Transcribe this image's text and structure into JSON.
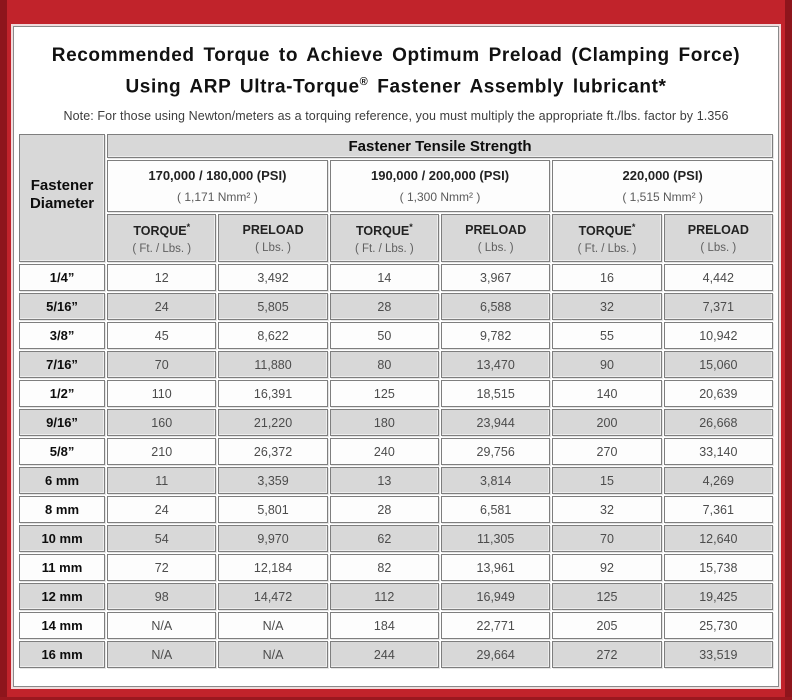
{
  "frame": {
    "red": "#c1232b",
    "maroon": "#8e151c"
  },
  "header": {
    "title_line1": "Recommended Torque to Achieve Optimum Preload (Clamping Force)",
    "title_line2_pre": "Using ARP Ultra-Torque",
    "title_line2_sup": "®",
    "title_line2_post": " Fastener Assembly lubricant*",
    "note": "Note: For those using Newton/meters as a torquing reference, you must multiply the appropriate ft./lbs. factor by 1.356"
  },
  "table": {
    "corner_line1": "Fastener",
    "corner_line2": "Diameter",
    "tensile_header": "Fastener Tensile Strength",
    "groups": [
      {
        "psi": "170,000 / 180,000 (PSI)",
        "nmm": "( 1,171 Nmm² )"
      },
      {
        "psi": "190,000 / 200,000 (PSI)",
        "nmm": "( 1,300 Nmm² )"
      },
      {
        "psi": "220,000 (PSI)",
        "nmm": "( 1,515 Nmm² )"
      }
    ],
    "col_headers": {
      "torque_label": "TORQUE",
      "torque_sup": "*",
      "torque_unit": "( Ft. / Lbs. )",
      "preload_label": "PRELOAD",
      "preload_unit": "( Lbs. )"
    },
    "rows": [
      {
        "d": "1/4”",
        "c": [
          "12",
          "3,492",
          "14",
          "3,967",
          "16",
          "4,442"
        ]
      },
      {
        "d": "5/16”",
        "c": [
          "24",
          "5,805",
          "28",
          "6,588",
          "32",
          "7,371"
        ]
      },
      {
        "d": "3/8”",
        "c": [
          "45",
          "8,622",
          "50",
          "9,782",
          "55",
          "10,942"
        ]
      },
      {
        "d": "7/16”",
        "c": [
          "70",
          "11,880",
          "80",
          "13,470",
          "90",
          "15,060"
        ]
      },
      {
        "d": "1/2”",
        "c": [
          "110",
          "16,391",
          "125",
          "18,515",
          "140",
          "20,639"
        ]
      },
      {
        "d": "9/16”",
        "c": [
          "160",
          "21,220",
          "180",
          "23,944",
          "200",
          "26,668"
        ]
      },
      {
        "d": "5/8”",
        "c": [
          "210",
          "26,372",
          "240",
          "29,756",
          "270",
          "33,140"
        ]
      },
      {
        "d": "6 mm",
        "c": [
          "11",
          "3,359",
          "13",
          "3,814",
          "15",
          "4,269"
        ]
      },
      {
        "d": "8 mm",
        "c": [
          "24",
          "5,801",
          "28",
          "6,581",
          "32",
          "7,361"
        ]
      },
      {
        "d": "10 mm",
        "c": [
          "54",
          "9,970",
          "62",
          "11,305",
          "70",
          "12,640"
        ]
      },
      {
        "d": "11 mm",
        "c": [
          "72",
          "12,184",
          "82",
          "13,961",
          "92",
          "15,738"
        ]
      },
      {
        "d": "12 mm",
        "c": [
          "98",
          "14,472",
          "112",
          "16,949",
          "125",
          "19,425"
        ]
      },
      {
        "d": "14 mm",
        "c": [
          "N/A",
          "N/A",
          "184",
          "22,771",
          "205",
          "25,730"
        ]
      },
      {
        "d": "16 mm",
        "c": [
          "N/A",
          "N/A",
          "244",
          "29,664",
          "272",
          "33,519"
        ]
      }
    ]
  }
}
